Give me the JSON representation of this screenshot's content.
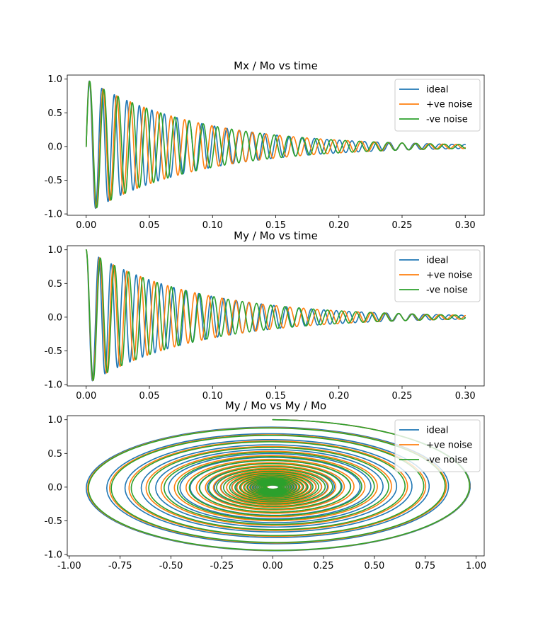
{
  "chart_data": [
    {
      "type": "line",
      "title": "Mx / Mo vs time",
      "xlabel": "",
      "ylabel": "",
      "xlim": [
        -0.015,
        0.315
      ],
      "ylim": [
        -1.02,
        1.06
      ],
      "xticks": [
        "0.00",
        "0.05",
        "0.10",
        "0.15",
        "0.20",
        "0.25",
        "0.30"
      ],
      "yticks": [
        "-1.0",
        "-0.5",
        "0.0",
        "0.5",
        "1.0"
      ],
      "legend": "top-right",
      "grid": false,
      "model": {
        "t_start": 0.0,
        "t_end": 0.3,
        "decay_time_s": 0.085,
        "phase": "sin"
      },
      "series": [
        {
          "name": "ideal",
          "color": "#1f77b4",
          "freq_hz": 101,
          "amplitude": 1.0
        },
        {
          "name": "+ve noise",
          "color": "#ff7f0e",
          "freq_hz": 93,
          "amplitude": 1.0
        },
        {
          "name": "-ve noise",
          "color": "#2ca02c",
          "freq_hz": 89,
          "amplitude": 1.0
        }
      ]
    },
    {
      "type": "line",
      "title": "My / Mo vs time",
      "xlabel": "",
      "ylabel": "",
      "xlim": [
        -0.015,
        0.315
      ],
      "ylim": [
        -1.02,
        1.06
      ],
      "xticks": [
        "0.00",
        "0.05",
        "0.10",
        "0.15",
        "0.20",
        "0.25",
        "0.30"
      ],
      "yticks": [
        "-1.0",
        "-0.5",
        "0.0",
        "0.5",
        "1.0"
      ],
      "legend": "top-right",
      "grid": false,
      "model": {
        "t_start": 0.0,
        "t_end": 0.3,
        "decay_time_s": 0.085,
        "phase": "cos"
      },
      "series": [
        {
          "name": "ideal",
          "color": "#1f77b4",
          "freq_hz": 101,
          "amplitude": 1.0
        },
        {
          "name": "+ve noise",
          "color": "#ff7f0e",
          "freq_hz": 93,
          "amplitude": 1.0
        },
        {
          "name": "-ve noise",
          "color": "#2ca02c",
          "freq_hz": 89,
          "amplitude": 1.0
        }
      ]
    },
    {
      "type": "line",
      "title": "My / Mo vs My / Mo",
      "xlabel": "",
      "ylabel": "",
      "xlim": [
        -1.01,
        1.04
      ],
      "ylim": [
        -1.02,
        1.06
      ],
      "xticks": [
        "-1.00",
        "-0.75",
        "-0.50",
        "-0.25",
        "0.00",
        "0.25",
        "0.50",
        "0.75",
        "1.00"
      ],
      "yticks": [
        "-1.0",
        "-0.5",
        "0.0",
        "0.5",
        "1.0"
      ],
      "legend": "top-right",
      "grid": false,
      "model": {
        "t_start": 0.0,
        "t_end": 0.3,
        "decay_time_s": 0.085,
        "phase": "spiral"
      },
      "series": [
        {
          "name": "ideal",
          "color": "#1f77b4",
          "freq_hz": 101,
          "amplitude": 1.0
        },
        {
          "name": "+ve noise",
          "color": "#ff7f0e",
          "freq_hz": 93,
          "amplitude": 1.0
        },
        {
          "name": "-ve noise",
          "color": "#2ca02c",
          "freq_hz": 89,
          "amplitude": 1.0
        }
      ]
    }
  ]
}
